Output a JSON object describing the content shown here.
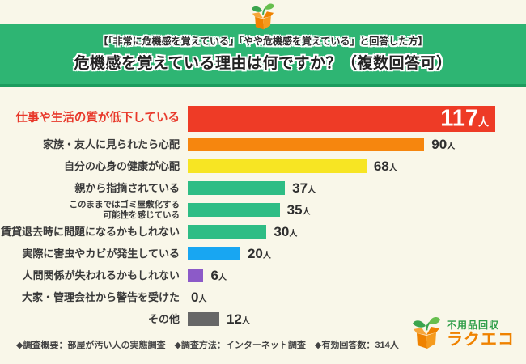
{
  "header": {
    "subtitle": "【「非常に危機感を覚えている」「やや危機感を覚えている」と回答した方】",
    "title": "危機感を覚えている理由は何ですか？（複数回答可）"
  },
  "chart_data": {
    "type": "bar",
    "orientation": "horizontal",
    "title": "危機感を覚えている理由は何ですか？（複数回答可）",
    "subtitle": "【「非常に危機感を覚えている」「やや危機感を覚えている」と回答した方】",
    "unit": "人",
    "xlim": [
      0,
      117
    ],
    "legend": "none",
    "grid": false,
    "categories": [
      "仕事や生活の質が低下している",
      "家族・友人に見られたら心配",
      "自分の心身の健康が心配",
      "親から指摘されている",
      "このままではゴミ屋敷化する可能性を感じている",
      "賃貸退去時に問題になるかもしれない",
      "実際に害虫やカビが発生している",
      "人間関係が失われるかもしれない",
      "大家・管理会社から警告を受けた",
      "その他"
    ],
    "values": [
      117,
      90,
      68,
      37,
      35,
      30,
      20,
      6,
      0,
      12
    ],
    "bar_colors": [
      "#ee3b26",
      "#f6860e",
      "#f7e523",
      "#2ebd85",
      "#2ebd85",
      "#2ebd85",
      "#18a6f2",
      "#8c5ac8",
      "#2ebd85",
      "#676767"
    ]
  },
  "rows": [
    {
      "label_lines": [
        "仕事や生活の質が低下している"
      ],
      "value": "117",
      "unit": "人",
      "color": "#ee3b26",
      "emphasized": true
    },
    {
      "label_lines": [
        "家族・友人に見られたら心配"
      ],
      "value": "90",
      "unit": "人",
      "color": "#f6860e",
      "emphasized": false
    },
    {
      "label_lines": [
        "自分の心身の健康が心配"
      ],
      "value": "68",
      "unit": "人",
      "color": "#f7e523",
      "emphasized": false
    },
    {
      "label_lines": [
        "親から指摘されている"
      ],
      "value": "37",
      "unit": "人",
      "color": "#2ebd85",
      "emphasized": false
    },
    {
      "label_lines": [
        "このままではゴミ屋敷化する",
        "可能性を感じている"
      ],
      "value": "35",
      "unit": "人",
      "color": "#2ebd85",
      "emphasized": false
    },
    {
      "label_lines": [
        "賃貸退去時に問題になるかもしれない"
      ],
      "value": "30",
      "unit": "人",
      "color": "#2ebd85",
      "emphasized": false
    },
    {
      "label_lines": [
        "実際に害虫やカビが発生している"
      ],
      "value": "20",
      "unit": "人",
      "color": "#18a6f2",
      "emphasized": false
    },
    {
      "label_lines": [
        "人間関係が失われるかもしれない"
      ],
      "value": "6",
      "unit": "人",
      "color": "#8c5ac8",
      "emphasized": false
    },
    {
      "label_lines": [
        "大家・管理会社から警告を受けた"
      ],
      "value": "0",
      "unit": "人",
      "color": null,
      "emphasized": false
    },
    {
      "label_lines": [
        "その他"
      ],
      "value": "12",
      "unit": "人",
      "color": "#676767",
      "emphasized": false
    }
  ],
  "footer": {
    "text": "◆調査概要：部屋が汚い人の実態調査　◆調査方法：インターネット調査　◆有効回答数：314人"
  },
  "brand": {
    "service": "不用品回収",
    "name": "ラクエコ",
    "green": "#2f9e49",
    "orange": "#ef8200"
  },
  "colors": {
    "background": "#f9f7e9",
    "header_band": "#2eb573",
    "header_band_border": "#1d9c5e",
    "emphasis_red": "#e8382a",
    "text_dark": "#3a3a3a"
  }
}
